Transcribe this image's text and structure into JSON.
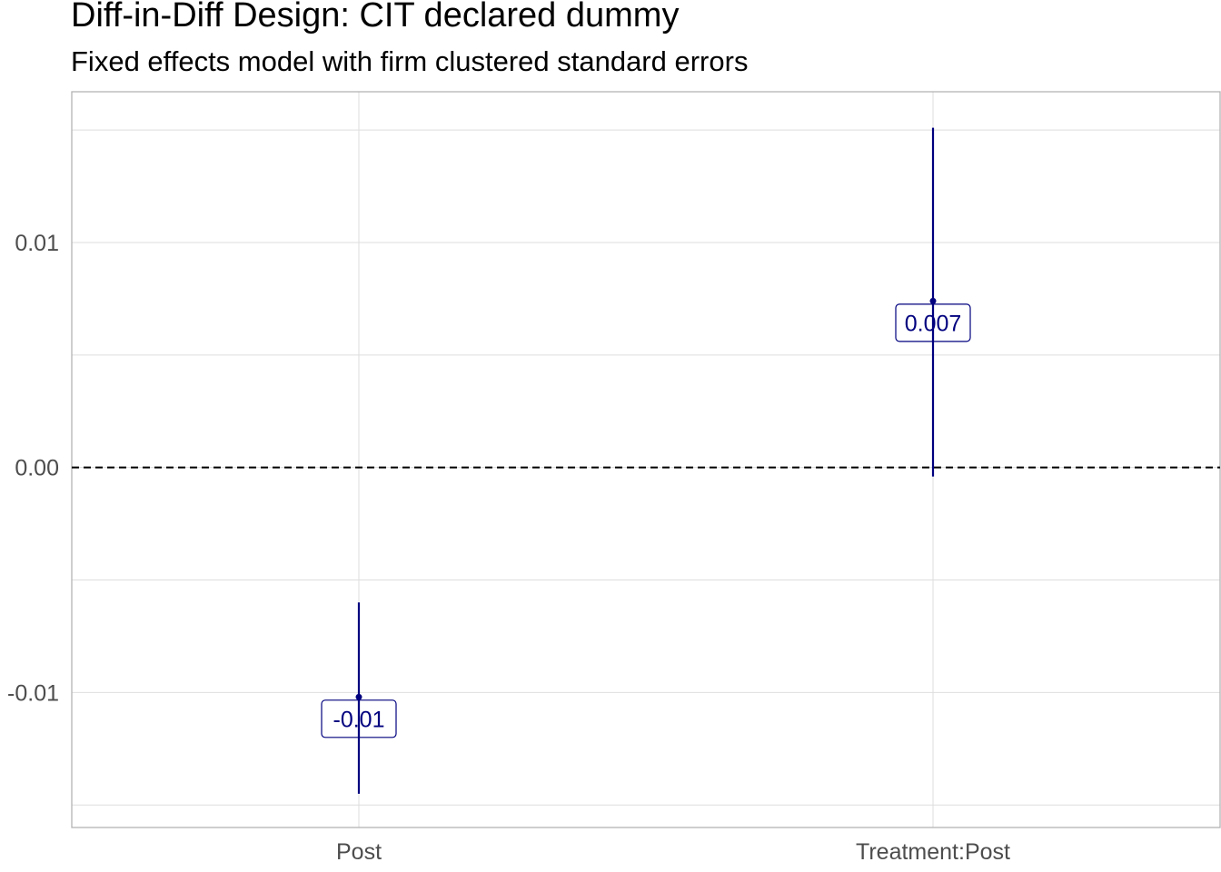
{
  "chart_data": {
    "type": "coefficient-plot",
    "title": "Diff-in-Diff Design: CIT declared dummy",
    "subtitle": "Fixed effects model with firm clustered standard errors",
    "xlabel": "",
    "ylabel": "",
    "categories": [
      "Post",
      "Treatment:Post"
    ],
    "estimates": [
      -0.0102,
      0.0074
    ],
    "ci_lower": [
      -0.0145,
      -0.0004
    ],
    "ci_upper": [
      -0.006,
      0.0151
    ],
    "data_labels": [
      "-0.01",
      "0.007"
    ],
    "ylim": [
      -0.016,
      0.0167
    ],
    "yticks": [
      -0.01,
      0.0,
      0.01
    ],
    "ytick_labels": [
      "-0.01",
      "0.00",
      "0.01"
    ],
    "reference_line": 0,
    "grid": true,
    "colors": {
      "series": "#00007f",
      "reference_line": "#000000",
      "grid": "#dedede",
      "panel_border": "#b3b3b3"
    }
  }
}
